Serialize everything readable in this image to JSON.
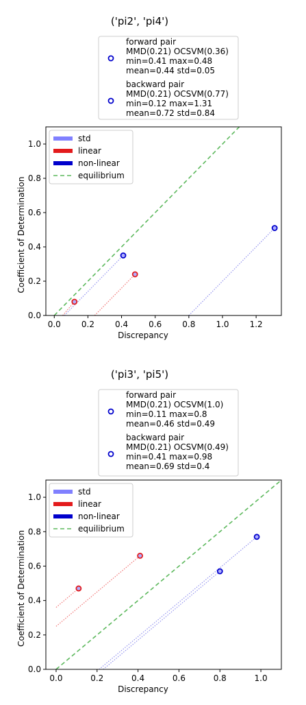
{
  "chart_data": [
    {
      "type": "scatter",
      "title": "('pi2', 'pi4')",
      "xlabel": "Discrepancy",
      "ylabel": "Coefficient of Determination",
      "xlim": [
        -0.05,
        1.35
      ],
      "ylim": [
        0,
        1.1
      ],
      "xticks": [
        "0.0",
        "0.2",
        "0.4",
        "0.6",
        "0.8",
        "1.0",
        "1.2"
      ],
      "yticks": [
        "0.0",
        "0.2",
        "0.4",
        "0.6",
        "0.8",
        "1.0"
      ],
      "top_legend": [
        {
          "lines": [
            "forward pair",
            "MMD(0.21) OCSVM(0.36)",
            "min=0.41 max=0.48",
            "mean=0.44 std=0.05"
          ]
        },
        {
          "lines": [
            "backward pair",
            "MMD(0.21) OCSVM(0.77)",
            "min=0.12 max=1.31",
            "mean=0.72 std=0.84"
          ]
        }
      ],
      "legend": [
        "std",
        "linear",
        "non-linear",
        "equilibrium"
      ],
      "legend_position": "upper-left",
      "points": [
        {
          "series": "linear",
          "x": 0.12,
          "y": 0.08
        },
        {
          "series": "linear",
          "x": 0.48,
          "y": 0.24
        },
        {
          "series": "non-linear",
          "x": 0.41,
          "y": 0.35
        },
        {
          "series": "non-linear",
          "x": 1.31,
          "y": 0.51
        }
      ],
      "std_lines": [
        {
          "series": "linear",
          "x": [
            0.05,
            0.12
          ],
          "y": [
            0.0,
            0.08
          ]
        },
        {
          "series": "linear",
          "x": [
            0.24,
            0.48
          ],
          "y": [
            0.0,
            0.24
          ]
        },
        {
          "series": "non-linear",
          "x": [
            0.06,
            0.41
          ],
          "y": [
            0.0,
            0.35
          ]
        },
        {
          "series": "non-linear",
          "x": [
            0.8,
            1.31
          ],
          "y": [
            0.0,
            0.51
          ]
        }
      ],
      "equilibrium": {
        "x": [
          0.0,
          1.1
        ],
        "y": [
          0.0,
          1.1
        ]
      }
    },
    {
      "type": "scatter",
      "title": "('pi3', 'pi5')",
      "xlabel": "Discrepancy",
      "ylabel": "Coefficient of Determination",
      "xlim": [
        -0.05,
        1.1
      ],
      "ylim": [
        0,
        1.1
      ],
      "xticks": [
        "0.0",
        "0.2",
        "0.4",
        "0.6",
        "0.8",
        "1.0"
      ],
      "yticks": [
        "0.0",
        "0.2",
        "0.4",
        "0.6",
        "0.8",
        "1.0"
      ],
      "top_legend": [
        {
          "lines": [
            "forward pair",
            "MMD(0.21) OCSVM(1.0)",
            "min=0.11 max=0.8",
            "mean=0.46 std=0.49"
          ]
        },
        {
          "lines": [
            "backward pair",
            "MMD(0.21) OCSVM(0.49)",
            "min=0.41 max=0.98",
            "mean=0.69 std=0.4"
          ]
        }
      ],
      "legend": [
        "std",
        "linear",
        "non-linear",
        "equilibrium"
      ],
      "legend_position": "upper-left",
      "points": [
        {
          "series": "linear",
          "x": 0.11,
          "y": 0.47
        },
        {
          "series": "linear",
          "x": 0.41,
          "y": 0.66
        },
        {
          "series": "non-linear",
          "x": 0.8,
          "y": 0.57
        },
        {
          "series": "non-linear",
          "x": 0.98,
          "y": 0.77
        }
      ],
      "std_lines": [
        {
          "series": "linear",
          "x": [
            0.0,
            0.11
          ],
          "y": [
            0.36,
            0.47
          ]
        },
        {
          "series": "linear",
          "x": [
            0.0,
            0.41
          ],
          "y": [
            0.25,
            0.66
          ]
        },
        {
          "series": "non-linear",
          "x": [
            0.21,
            0.98
          ],
          "y": [
            0.0,
            0.77
          ]
        },
        {
          "series": "non-linear",
          "x": [
            0.23,
            0.8
          ],
          "y": [
            0.0,
            0.57
          ]
        }
      ],
      "equilibrium": {
        "x": [
          0.0,
          1.1
        ],
        "y": [
          0.0,
          1.1
        ]
      }
    }
  ],
  "colors": {
    "std": "#8080ff",
    "linear": "#e31a1c",
    "non-linear": "#0000cc",
    "equilibrium": "#5cb85c",
    "linear_dot": "#f07070",
    "nonlinear_dot": "#9090ee"
  }
}
